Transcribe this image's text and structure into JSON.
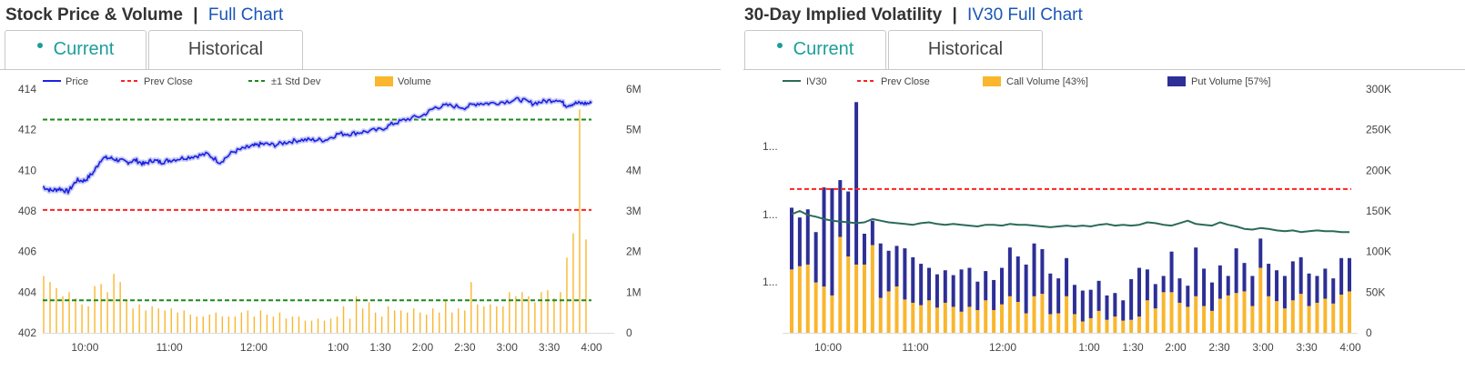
{
  "left_panel": {
    "title": "Stock Price & Volume",
    "separator": "|",
    "link": "Full Chart",
    "tabs": [
      {
        "label": "Current",
        "active": true
      },
      {
        "label": "Historical",
        "active": false
      }
    ]
  },
  "right_panel": {
    "title": "30-Day Implied Volatility",
    "separator": "|",
    "link": "IV30 Full Chart",
    "tabs": [
      {
        "label": "Current",
        "active": true
      },
      {
        "label": "Historical",
        "active": false
      }
    ]
  },
  "colors": {
    "price": "#1a22e0",
    "prev_close": "#ff2020",
    "std_dev": "#1a8a1a",
    "volume": "#f9b62e",
    "iv30": "#2b6a5a",
    "call_volume": "#f9b62e",
    "put_volume": "#2d2f96",
    "active_tab": "#1c9e9a",
    "link": "#1a56b8"
  },
  "chart_data": [
    {
      "type": "line",
      "legend": [
        "Price",
        "Prev Close",
        "±1 Std Dev",
        "Volume"
      ],
      "x_ticks": [
        "10:00",
        "11:00",
        "12:00",
        "1:00",
        "1:30",
        "2:00",
        "2:30",
        "3:00",
        "3:30",
        "4:00"
      ],
      "y_left_ticks": [
        "414",
        "412",
        "410",
        "408",
        "406",
        "404",
        "402"
      ],
      "y_left_range": [
        402,
        414
      ],
      "y_right_ticks": [
        "6M",
        "5M",
        "4M",
        "3M",
        "2M",
        "1M",
        "0"
      ],
      "y_right_range": [
        0,
        6000000
      ],
      "prev_close": 408.05,
      "std_dev_upper": 412.5,
      "std_dev_lower": 403.6,
      "price_series": {
        "name": "Price",
        "t": [
          9.5,
          9.6,
          9.7,
          9.8,
          9.9,
          10.0,
          10.1,
          10.2,
          10.3,
          10.4,
          10.5,
          10.6,
          10.7,
          10.8,
          10.9,
          11.0,
          11.15,
          11.3,
          11.45,
          11.6,
          11.75,
          11.9,
          12.0,
          12.1,
          12.25,
          12.4,
          12.55,
          12.7,
          12.85,
          13.0,
          13.15,
          13.3,
          13.5,
          13.65,
          13.8,
          14.0,
          14.15,
          14.3,
          14.5,
          14.65,
          14.8,
          15.0,
          15.15,
          15.3,
          15.45,
          15.6,
          15.7,
          15.8,
          15.9,
          16.0
        ],
        "values": [
          409.2,
          409.0,
          409.1,
          408.95,
          409.5,
          409.5,
          409.9,
          410.6,
          410.6,
          410.5,
          410.4,
          410.5,
          410.3,
          410.5,
          410.4,
          410.5,
          410.6,
          410.7,
          410.8,
          410.4,
          410.9,
          411.1,
          411.2,
          411.3,
          411.25,
          411.4,
          411.5,
          411.5,
          411.5,
          411.8,
          411.8,
          411.9,
          412.0,
          412.3,
          412.5,
          412.7,
          413.1,
          413.2,
          413.1,
          413.3,
          413.3,
          413.4,
          413.5,
          413.3,
          413.4,
          413.5,
          413.2,
          413.3,
          413.3,
          413.3
        ]
      },
      "volume_series": {
        "name": "Volume",
        "values": [
          1400000,
          1250000,
          1100000,
          900000,
          1000000,
          850000,
          700000,
          650000,
          1150000,
          1200000,
          1000000,
          1450000,
          1250000,
          800000,
          600000,
          700000,
          550000,
          650000,
          600000,
          550000,
          600000,
          500000,
          550000,
          450000,
          400000,
          400000,
          450000,
          500000,
          400000,
          400000,
          400000,
          500000,
          550000,
          400000,
          550000,
          450000,
          400000,
          500000,
          350000,
          400000,
          400000,
          300000,
          300000,
          350000,
          300000,
          350000,
          400000,
          650000,
          350000,
          900000,
          600000,
          750000,
          500000,
          400000,
          650000,
          550000,
          550000,
          500000,
          600000,
          500000,
          450000,
          600000,
          500000,
          800000,
          500000,
          600000,
          550000,
          1250000,
          700000,
          650000,
          700000,
          650000,
          650000,
          1000000,
          900000,
          1000000,
          900000,
          750000,
          1000000,
          1050000,
          850000,
          1000000,
          1850000,
          2450000,
          5500000,
          2300000
        ]
      }
    },
    {
      "type": "bar",
      "legend": [
        "IV30",
        "Prev Close",
        "Call Volume [43%]",
        "Put Volume [57%]"
      ],
      "x_ticks": [
        "10:00",
        "11:00",
        "12:00",
        "1:00",
        "1:30",
        "2:00",
        "2:30",
        "3:00",
        "3:30",
        "4:00"
      ],
      "y_left_ticks": [
        "1...",
        "1...",
        "1..."
      ],
      "y_right_ticks": [
        "300K",
        "250K",
        "200K",
        "150K",
        "100K",
        "50K",
        "0"
      ],
      "y_right_range": [
        0,
        300000
      ],
      "prev_close_volume_level": 177000,
      "iv30_series": {
        "name": "IV30",
        "values": [
          146000,
          150000,
          145000,
          143000,
          140000,
          138000,
          137000,
          136000,
          135000,
          136000,
          140000,
          138000,
          136000,
          135000,
          134000,
          133000,
          135000,
          136000,
          134000,
          133000,
          134000,
          133000,
          132000,
          131000,
          133000,
          133000,
          132000,
          134000,
          133000,
          133000,
          132000,
          131000,
          130000,
          131000,
          132000,
          131000,
          132000,
          131000,
          133000,
          134000,
          132000,
          133000,
          132000,
          133000,
          136000,
          135000,
          133000,
          132000,
          135000,
          138000,
          134000,
          133000,
          132000,
          136000,
          133000,
          131000,
          128000,
          127000,
          129000,
          128000,
          126000,
          125000,
          126000,
          124000,
          125000,
          126000,
          125000,
          125000,
          124000,
          124000
        ]
      },
      "call_volume_series": {
        "name": "Call Volume [43%]",
        "values": [
          78000,
          82000,
          84000,
          62000,
          57000,
          46000,
          118000,
          94000,
          84000,
          84000,
          108000,
          43000,
          51000,
          57000,
          41000,
          37000,
          34000,
          40000,
          31000,
          37000,
          32000,
          26000,
          32000,
          28000,
          40000,
          28000,
          35000,
          45000,
          38000,
          24000,
          45000,
          48000,
          23000,
          24000,
          45000,
          23000,
          14000,
          18000,
          27000,
          16000,
          20000,
          15000,
          16000,
          20000,
          40000,
          30000,
          50000,
          50000,
          37000,
          32000,
          45000,
          33000,
          27000,
          42000,
          46000,
          49000,
          51000,
          33000,
          80000,
          45000,
          39000,
          30000,
          40000,
          48000,
          33000,
          37000,
          42000,
          36000,
          47000,
          51000
        ]
      },
      "put_volume_series": {
        "name": "Put Volume [57%]",
        "values": [
          76000,
          60000,
          68000,
          62000,
          122000,
          132000,
          70000,
          80000,
          200000,
          38000,
          30000,
          67000,
          50000,
          50000,
          63000,
          56000,
          51000,
          40000,
          41000,
          40000,
          39000,
          52000,
          48000,
          35000,
          36000,
          37000,
          45000,
          60000,
          56000,
          60000,
          65000,
          55000,
          50000,
          43000,
          47000,
          36000,
          38000,
          35000,
          37000,
          30000,
          29000,
          25000,
          50000,
          60000,
          38000,
          30000,
          20000,
          50000,
          30000,
          26000,
          60000,
          46000,
          35000,
          41000,
          24000,
          55000,
          35000,
          37000,
          36000,
          40000,
          38000,
          40000,
          48000,
          45000,
          40000,
          33000,
          37000,
          31000,
          45000,
          41000
        ]
      }
    }
  ]
}
